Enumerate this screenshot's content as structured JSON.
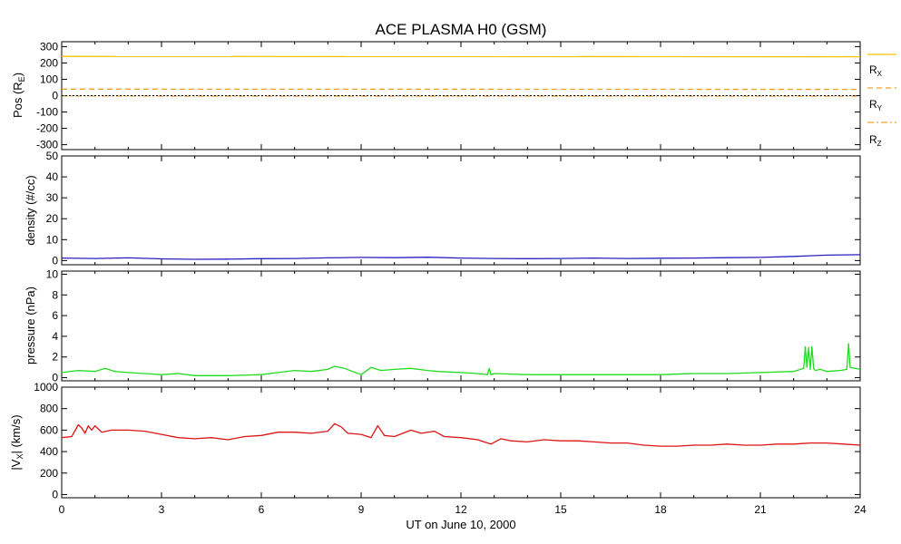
{
  "chart_data": {
    "title": "ACE PLASMA H0 (GSM)",
    "type": "line",
    "x_axis": {
      "label": "UT on June 10, 2000",
      "range": [
        0,
        24
      ],
      "ticks": [
        0,
        3,
        6,
        9,
        12,
        15,
        18,
        21,
        24
      ],
      "tick_labels": [
        "0",
        "3",
        "6",
        "9",
        "12",
        "15",
        "18",
        "21",
        "24"
      ]
    },
    "panels": [
      {
        "ylabel_prefix": "Pos (R",
        "ylabel_sub": "E",
        "ylabel_suffix": ")",
        "ylim": [
          -330,
          330
        ],
        "ticks": [
          -300,
          -200,
          -100,
          0,
          100,
          200,
          300
        ],
        "tick_labels": [
          "-300",
          "-200",
          "-100",
          "0",
          "100",
          "200",
          "300"
        ],
        "series": [
          {
            "name": "R",
            "sub": "X",
            "style": "solid",
            "color": "#f5c400",
            "x": [
              0,
              24
            ],
            "y": [
              240,
              238
            ]
          },
          {
            "name": "R",
            "sub": "Y",
            "style": "dashed",
            "color": "#f0a020",
            "x": [
              0,
              24
            ],
            "y": [
              40,
              38
            ]
          },
          {
            "name": "R",
            "sub": "Z",
            "style": "dashdot",
            "color": "#f0a020",
            "x": [
              0,
              24
            ],
            "y": [
              -2,
              -3
            ]
          },
          {
            "name": "",
            "style": "dotted",
            "color": "#000000",
            "x": [
              0,
              24
            ],
            "y": [
              0,
              0
            ]
          }
        ]
      },
      {
        "ylabel": "density (#/cc)",
        "ylim": [
          -2,
          50
        ],
        "ticks": [
          0,
          10,
          20,
          30,
          40,
          50
        ],
        "tick_labels": [
          "0",
          "10",
          "20",
          "30",
          "40",
          "50"
        ],
        "series": [
          {
            "color": "#2a1fc0",
            "x": [
              0,
              1,
              2,
              3,
              4,
              5,
              6,
              7,
              8,
              9,
              10,
              11,
              12,
              13,
              14,
              15,
              16,
              17,
              18,
              19,
              20,
              21,
              22,
              23,
              24
            ],
            "y": [
              1.2,
              1.0,
              1.3,
              0.8,
              0.6,
              0.7,
              0.9,
              1.0,
              1.3,
              1.5,
              1.4,
              1.6,
              1.2,
              1.0,
              0.9,
              1.0,
              1.2,
              1.0,
              1.1,
              1.2,
              1.4,
              1.5,
              2.0,
              2.6,
              2.8
            ]
          }
        ]
      },
      {
        "ylabel": "pressure (nPa)",
        "ylim": [
          -0.3,
          10.3
        ],
        "ticks": [
          0,
          2,
          4,
          6,
          8,
          10
        ],
        "tick_labels": [
          "0",
          "2",
          "4",
          "6",
          "8",
          "10"
        ],
        "series": [
          {
            "color": "#1fdc1f",
            "x": [
              0,
              0.5,
              1,
              1.3,
              1.6,
              2,
              2.5,
              3,
              3.5,
              4,
              5,
              6,
              6.5,
              7,
              7.5,
              8,
              8.2,
              8.5,
              9,
              9.3,
              9.6,
              10,
              10.5,
              11,
              11.3,
              12,
              12.5,
              12.8,
              12.85,
              12.9,
              13,
              14,
              15,
              16,
              17,
              18,
              19,
              20,
              21,
              22,
              22.3,
              22.35,
              22.4,
              22.45,
              22.5,
              22.55,
              22.6,
              22.65,
              22.8,
              23,
              23.4,
              23.6,
              23.65,
              23.7,
              24
            ],
            "y": [
              0.5,
              0.7,
              0.6,
              0.9,
              0.6,
              0.5,
              0.4,
              0.3,
              0.4,
              0.2,
              0.2,
              0.3,
              0.5,
              0.7,
              0.6,
              0.8,
              1.1,
              0.9,
              0.3,
              1.0,
              0.7,
              0.8,
              0.9,
              0.7,
              0.6,
              0.5,
              0.4,
              0.3,
              0.9,
              0.3,
              0.4,
              0.3,
              0.3,
              0.3,
              0.3,
              0.3,
              0.4,
              0.4,
              0.5,
              0.6,
              0.9,
              3.0,
              1.0,
              2.9,
              0.8,
              3.0,
              0.9,
              0.7,
              0.8,
              0.6,
              0.7,
              0.8,
              3.3,
              1.0,
              0.8
            ]
          }
        ]
      },
      {
        "ylabel_prefix": "|V",
        "ylabel_sub": "X",
        "ylabel_suffix": "| (km/s)",
        "ylim": [
          -30,
          1000
        ],
        "ticks": [
          0,
          200,
          400,
          600,
          800,
          1000
        ],
        "tick_labels": [
          "0",
          "200",
          "400",
          "600",
          "800",
          "1000"
        ],
        "series": [
          {
            "color": "#dc1414",
            "x": [
              0,
              0.3,
              0.5,
              0.6,
              0.7,
              0.8,
              0.9,
              1.0,
              1.2,
              1.5,
              2,
              2.5,
              3,
              3.5,
              4,
              4.5,
              5,
              5.5,
              6,
              6.5,
              7,
              7.5,
              8,
              8.2,
              8.4,
              8.6,
              9,
              9.3,
              9.5,
              9.7,
              10,
              10.5,
              10.8,
              11.2,
              11.5,
              12,
              12.5,
              12.9,
              13.2,
              13.5,
              14,
              14.5,
              15,
              15.5,
              16,
              16.5,
              17,
              17.5,
              18,
              18.5,
              19,
              19.5,
              20,
              20.5,
              21,
              21.5,
              22,
              22.5,
              23,
              23.5,
              24
            ],
            "y": [
              530,
              540,
              650,
              620,
              570,
              640,
              600,
              640,
              580,
              600,
              600,
              590,
              560,
              530,
              520,
              530,
              510,
              540,
              550,
              580,
              580,
              570,
              590,
              660,
              630,
              570,
              560,
              530,
              640,
              550,
              540,
              600,
              570,
              590,
              540,
              530,
              510,
              470,
              520,
              500,
              490,
              510,
              500,
              500,
              490,
              480,
              480,
              460,
              450,
              450,
              460,
              460,
              470,
              460,
              460,
              470,
              470,
              480,
              480,
              470,
              460
            ]
          }
        ]
      }
    ]
  }
}
